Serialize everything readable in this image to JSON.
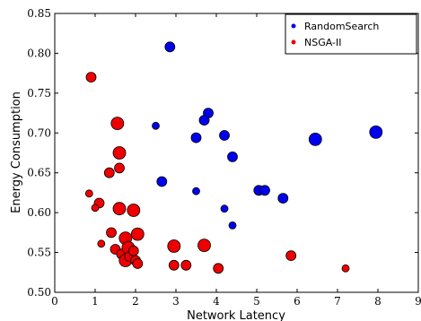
{
  "chart_data": {
    "type": "scatter",
    "title": "",
    "xlabel": "Network Latency",
    "ylabel": "Energy Consumption",
    "xlim": [
      0,
      9
    ],
    "ylim": [
      0.5,
      0.85
    ],
    "xticks": [
      "0",
      "1",
      "2",
      "3",
      "4",
      "5",
      "6",
      "7",
      "8",
      "9"
    ],
    "yticks": [
      "0.50",
      "0.55",
      "0.60",
      "0.65",
      "0.70",
      "0.75",
      "0.80",
      "0.85"
    ],
    "grid": false,
    "legend_position": "top-right",
    "series": [
      {
        "name": "RandomSearch",
        "color": "#0000ee",
        "points": [
          {
            "x": 2.85,
            "y": 0.808,
            "s": 2
          },
          {
            "x": 2.5,
            "y": 0.709,
            "s": 1
          },
          {
            "x": 3.8,
            "y": 0.725,
            "s": 2
          },
          {
            "x": 3.7,
            "y": 0.716,
            "s": 2
          },
          {
            "x": 3.5,
            "y": 0.694,
            "s": 2
          },
          {
            "x": 4.2,
            "y": 0.697,
            "s": 2
          },
          {
            "x": 4.4,
            "y": 0.67,
            "s": 2
          },
          {
            "x": 2.65,
            "y": 0.639,
            "s": 2
          },
          {
            "x": 3.5,
            "y": 0.627,
            "s": 1
          },
          {
            "x": 4.2,
            "y": 0.605,
            "s": 1
          },
          {
            "x": 4.4,
            "y": 0.584,
            "s": 1
          },
          {
            "x": 5.05,
            "y": 0.628,
            "s": 2
          },
          {
            "x": 5.2,
            "y": 0.628,
            "s": 2
          },
          {
            "x": 5.65,
            "y": 0.618,
            "s": 2
          },
          {
            "x": 6.45,
            "y": 0.692,
            "s": 3
          },
          {
            "x": 7.95,
            "y": 0.701,
            "s": 3
          }
        ]
      },
      {
        "name": "NSGA-II",
        "color": "#ee0000",
        "points": [
          {
            "x": 0.9,
            "y": 0.77,
            "s": 2
          },
          {
            "x": 1.55,
            "y": 0.712,
            "s": 3
          },
          {
            "x": 1.6,
            "y": 0.675,
            "s": 3
          },
          {
            "x": 1.6,
            "y": 0.656,
            "s": 2
          },
          {
            "x": 1.35,
            "y": 0.65,
            "s": 2
          },
          {
            "x": 0.85,
            "y": 0.624,
            "s": 1
          },
          {
            "x": 1.1,
            "y": 0.612,
            "s": 2
          },
          {
            "x": 1.0,
            "y": 0.606,
            "s": 1
          },
          {
            "x": 1.6,
            "y": 0.605,
            "s": 3
          },
          {
            "x": 1.95,
            "y": 0.603,
            "s": 3
          },
          {
            "x": 1.15,
            "y": 0.561,
            "s": 1
          },
          {
            "x": 1.4,
            "y": 0.575,
            "s": 2
          },
          {
            "x": 1.5,
            "y": 0.554,
            "s": 2
          },
          {
            "x": 1.65,
            "y": 0.548,
            "s": 2
          },
          {
            "x": 1.75,
            "y": 0.568,
            "s": 3
          },
          {
            "x": 1.75,
            "y": 0.54,
            "s": 3
          },
          {
            "x": 1.82,
            "y": 0.556,
            "s": 3
          },
          {
            "x": 1.85,
            "y": 0.545,
            "s": 2
          },
          {
            "x": 1.95,
            "y": 0.552,
            "s": 2
          },
          {
            "x": 2.0,
            "y": 0.54,
            "s": 2
          },
          {
            "x": 2.05,
            "y": 0.573,
            "s": 3
          },
          {
            "x": 2.05,
            "y": 0.536,
            "s": 2
          },
          {
            "x": 2.95,
            "y": 0.558,
            "s": 3
          },
          {
            "x": 2.95,
            "y": 0.534,
            "s": 2
          },
          {
            "x": 3.25,
            "y": 0.534,
            "s": 2
          },
          {
            "x": 3.7,
            "y": 0.559,
            "s": 3
          },
          {
            "x": 4.05,
            "y": 0.53,
            "s": 2
          },
          {
            "x": 5.85,
            "y": 0.546,
            "s": 2
          },
          {
            "x": 7.2,
            "y": 0.53,
            "s": 1
          }
        ]
      }
    ]
  }
}
